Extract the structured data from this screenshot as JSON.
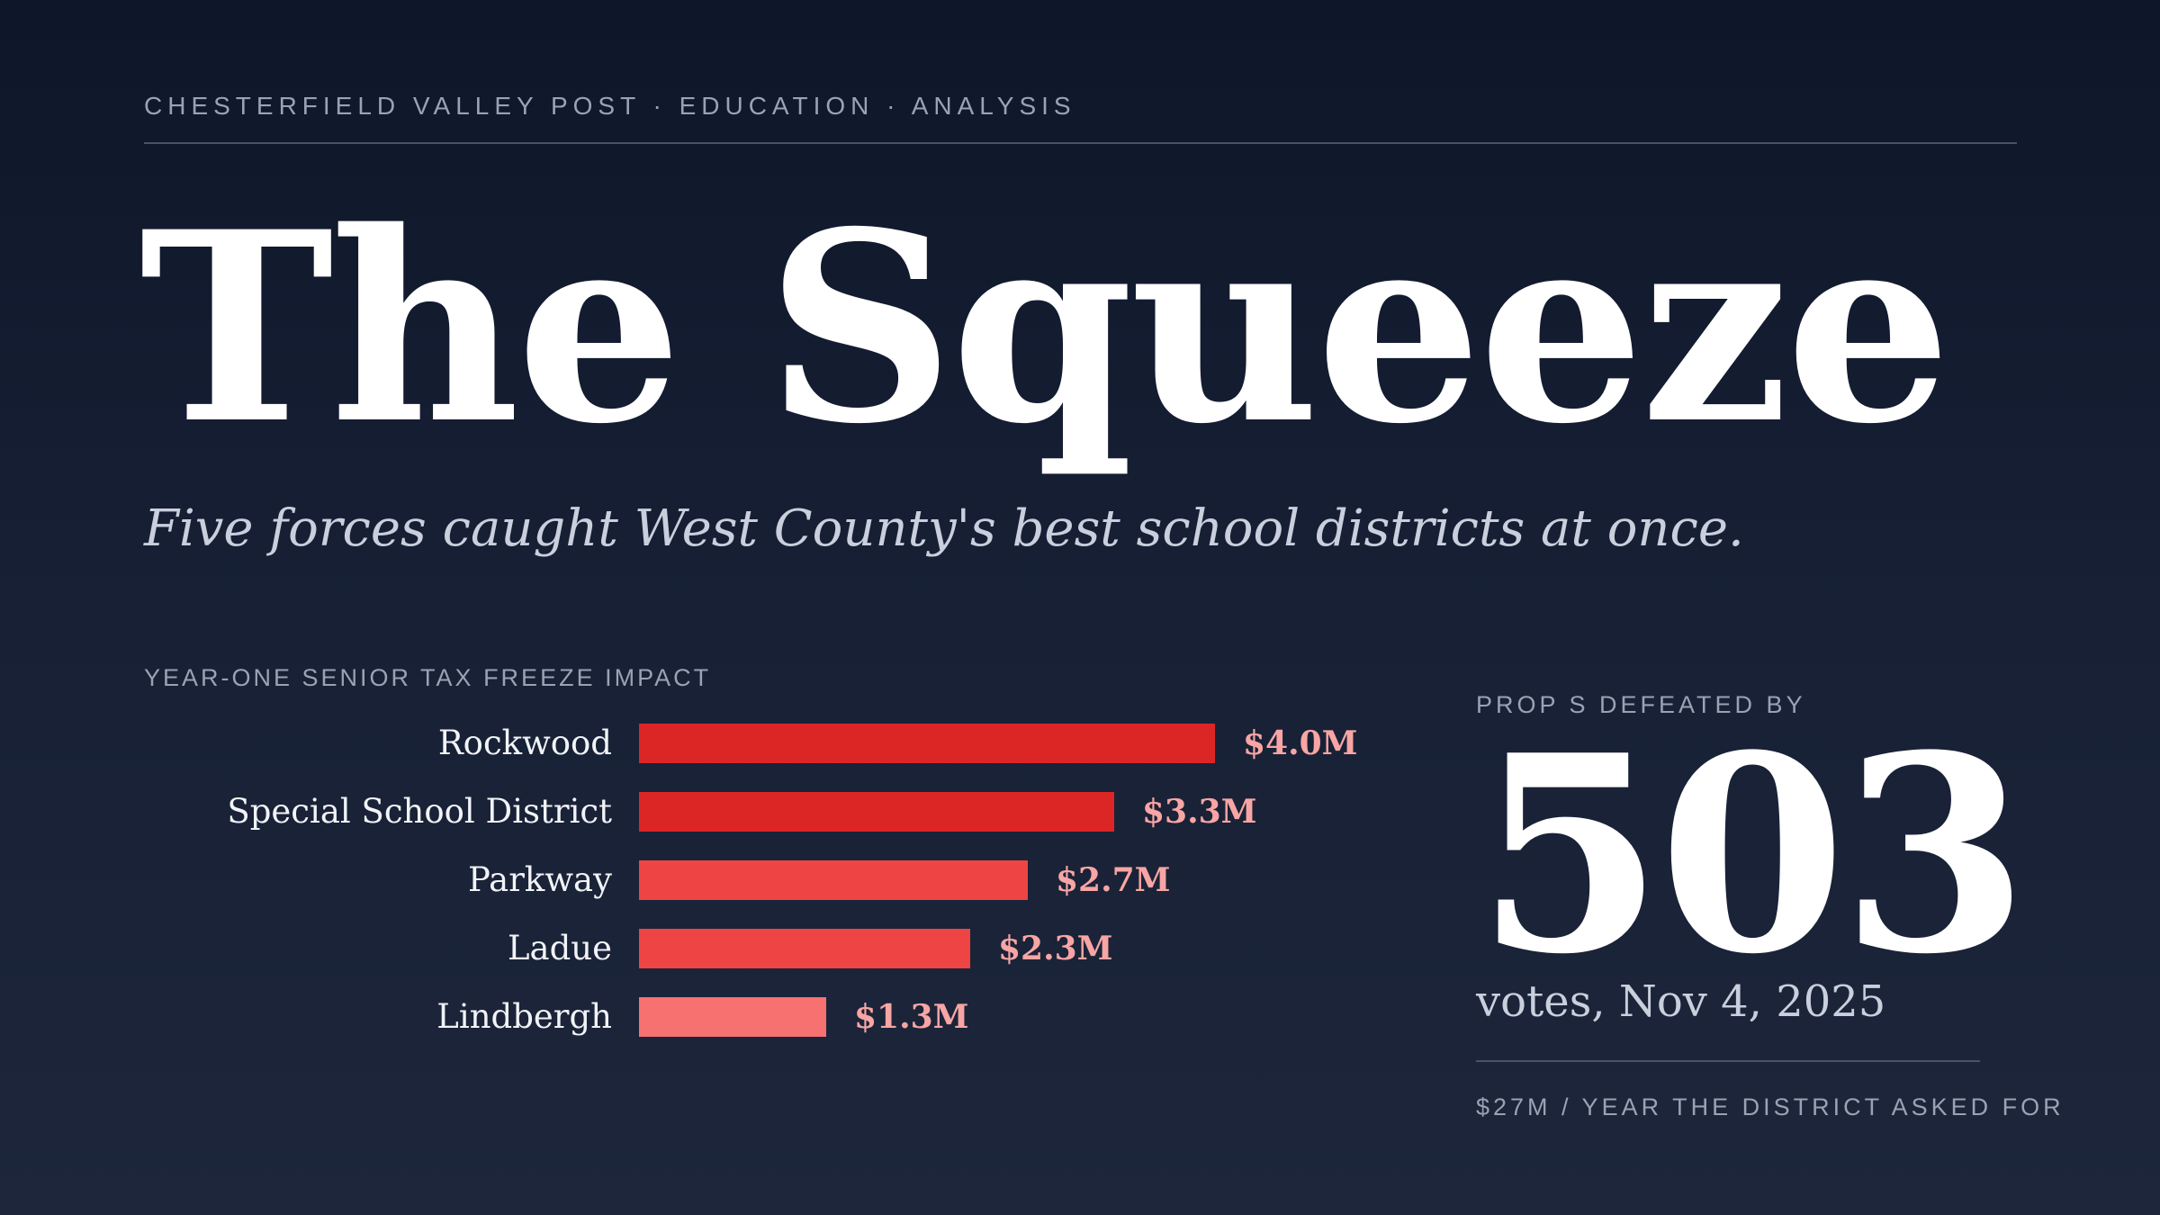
{
  "header": {
    "kicker": "CHESTERFIELD VALLEY POST · EDUCATION · ANALYSIS",
    "title": "The Squeeze",
    "subtitle": "Five forces caught West County's best school districts at once."
  },
  "stat": {
    "label": "PROP S DEFEATED BY",
    "number": "503",
    "caption": "votes, Nov 4, 2025",
    "footnote": "$27M / YEAR THE DISTRICT ASKED FOR"
  },
  "chart_data": {
    "type": "bar",
    "orientation": "horizontal",
    "title": "YEAR-ONE SENIOR TAX FREEZE IMPACT",
    "unit": "$M",
    "categories": [
      "Rockwood",
      "Special School District",
      "Parkway",
      "Ladue",
      "Lindbergh"
    ],
    "values": [
      4.0,
      3.3,
      2.7,
      2.3,
      1.3
    ],
    "value_labels": [
      "$4.0M",
      "$3.3M",
      "$2.7M",
      "$2.3M",
      "$1.3M"
    ],
    "colors": [
      "#dc2626",
      "#dc2626",
      "#ef4444",
      "#ef4444",
      "#f87171"
    ],
    "xlim": [
      0,
      4.0
    ],
    "grid": false,
    "legend": "none"
  }
}
